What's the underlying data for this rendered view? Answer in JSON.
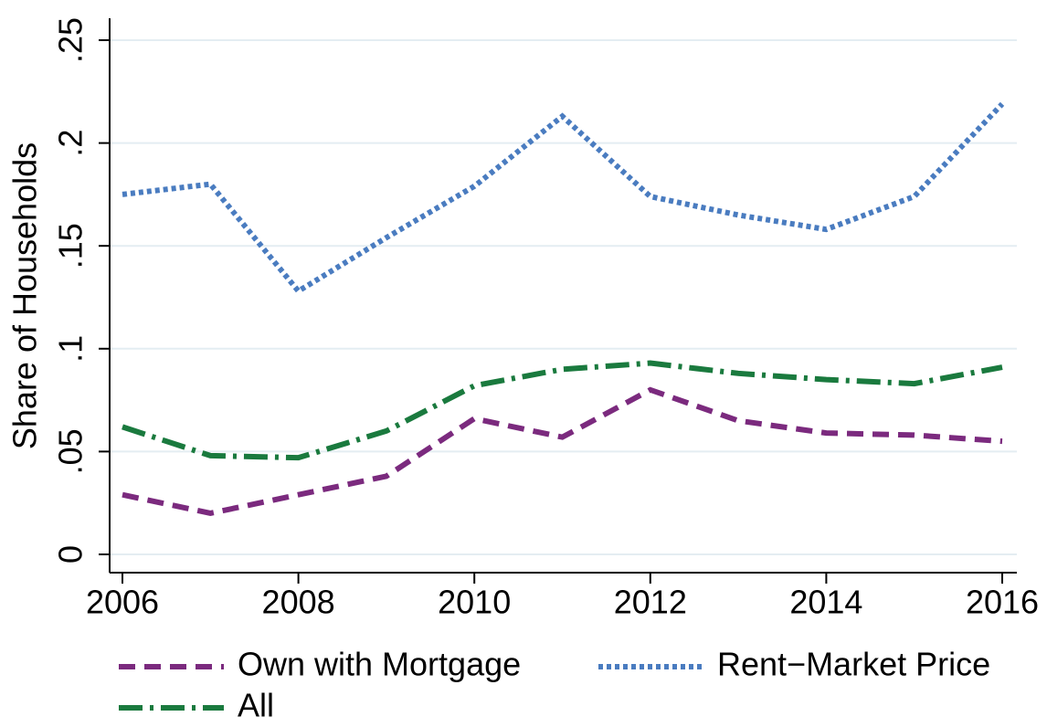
{
  "chart_data": {
    "type": "line",
    "y_label": "Share of Households",
    "x": [
      2006,
      2007,
      2008,
      2009,
      2010,
      2011,
      2012,
      2013,
      2014,
      2015,
      2016
    ],
    "series": [
      {
        "name": "Own with Mortgage",
        "color": "#7b2a7e",
        "linestyle": "dashed",
        "values": [
          0.029,
          0.02,
          0.029,
          0.038,
          0.066,
          0.057,
          0.08,
          0.065,
          0.059,
          0.058,
          0.055
        ]
      },
      {
        "name": "Rent−Market Price",
        "color": "#4a7cc0",
        "linestyle": "dotted",
        "values": [
          0.175,
          0.18,
          0.128,
          0.154,
          0.179,
          0.213,
          0.174,
          0.165,
          0.158,
          0.174,
          0.219
        ]
      },
      {
        "name": "All",
        "color": "#1a7a3e",
        "linestyle": "dashdot",
        "values": [
          0.062,
          0.048,
          0.047,
          0.06,
          0.082,
          0.09,
          0.093,
          0.088,
          0.085,
          0.083,
          0.091
        ]
      }
    ],
    "xlim": [
      2006,
      2016
    ],
    "xticks": [
      2006,
      2008,
      2010,
      2012,
      2014,
      2016
    ],
    "ylim": [
      0,
      0.25
    ],
    "yticks": [
      0,
      {
        "value": 0.05,
        "label": ".05"
      },
      {
        "value": 0.1,
        "label": ".1"
      },
      {
        "value": 0.15,
        "label": ".15"
      },
      {
        "value": 0.2,
        "label": ".2"
      },
      {
        "value": 0.25,
        "label": ".25"
      }
    ],
    "grid": true,
    "legend": "bottom"
  }
}
